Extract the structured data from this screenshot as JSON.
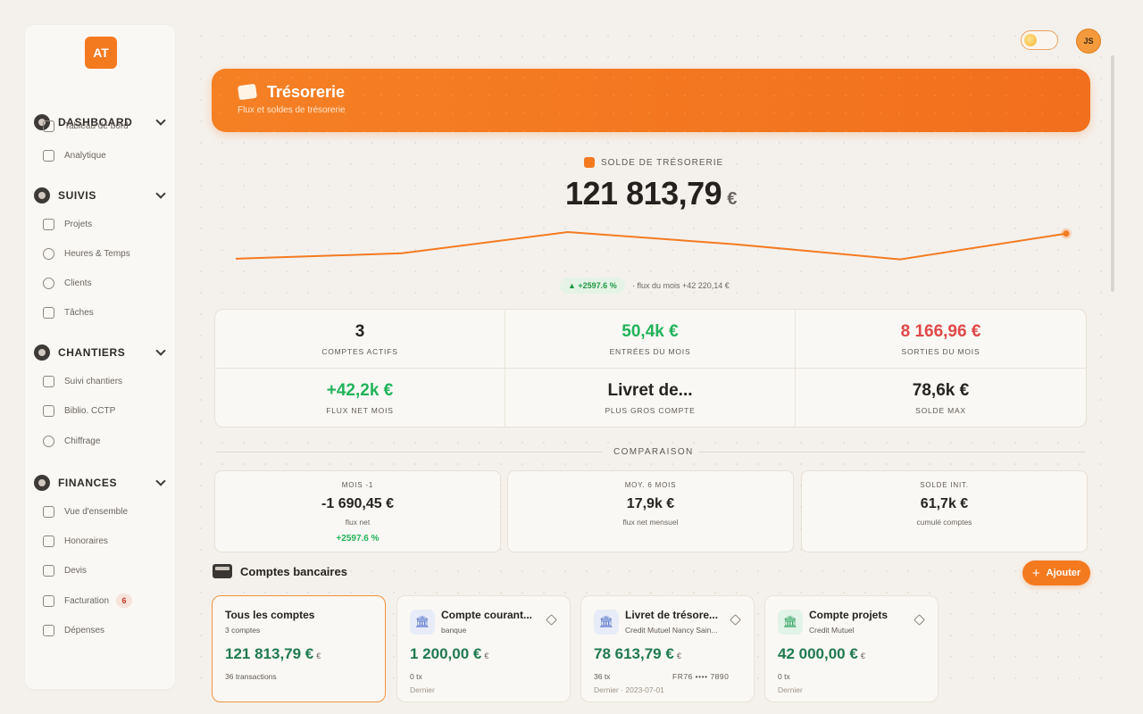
{
  "sidebar": {
    "logo": "AT",
    "sections": [
      {
        "title": "DASHBOARD",
        "items": [
          "Tableau de bord",
          "Analytique"
        ]
      },
      {
        "title": "SUIVIS",
        "items": [
          "Projets",
          "Heures & Temps",
          "Clients",
          "Tâches"
        ]
      },
      {
        "title": "CHANTIERS",
        "items": [
          "Suivi chantiers",
          "Biblio. CCTP",
          "Chiffrage"
        ]
      },
      {
        "title": "FINANCES",
        "items": [
          "Vue d'ensemble",
          "Honoraires",
          "Devis",
          "Facturation",
          "Dépenses"
        ]
      }
    ],
    "facturation_badge": "6",
    "collapse_glyph": "‹"
  },
  "topbar": {
    "avatar": "JS"
  },
  "hero": {
    "title": "Trésorerie",
    "subtitle": "Flux et soldes de trésorerie"
  },
  "balance": {
    "label": "SOLDE DE TRÉSORERIE",
    "value": "121 813,79",
    "currency": "€",
    "change": "▲ +2597.6 %",
    "note": "·  flux du mois +42 220,14 €"
  },
  "sparkline": {
    "values": [
      0.12,
      0.3,
      1.0,
      0.6,
      0.1,
      0.95
    ]
  },
  "stats": [
    {
      "value": "3",
      "label": "COMPTES ACTIFS",
      "tone": ""
    },
    {
      "value": "50,4k €",
      "label": "ENTRÉES DU MOIS",
      "tone": "green"
    },
    {
      "value": "8 166,96 €",
      "label": "SORTIES DU MOIS",
      "tone": "red"
    },
    {
      "value": "+42,2k €",
      "label": "FLUX NET MOIS",
      "tone": "green"
    },
    {
      "value": "Livret de...",
      "label": "PLUS GROS COMPTE",
      "tone": ""
    },
    {
      "value": "78,6k €",
      "label": "SOLDE MAX",
      "tone": ""
    }
  ],
  "comparison": {
    "title": "COMPARAISON",
    "cards": [
      {
        "label": "MOIS -1",
        "value": "-1 690,45 €",
        "sub": "flux net",
        "extra": "+2597.6 %"
      },
      {
        "label": "MOY. 6 MOIS",
        "value": "17,9k €",
        "sub": "flux net mensuel",
        "extra": ""
      },
      {
        "label": "SOLDE INIT.",
        "value": "61,7k €",
        "sub": "cumulé comptes",
        "extra": ""
      }
    ]
  },
  "accounts": {
    "title": "Comptes bancaires",
    "add_label": "Ajouter",
    "add_icon": "+",
    "cards": [
      {
        "name": "Tous les comptes",
        "sub": "3 comptes",
        "amount": "121 813,79 €",
        "cur": "€",
        "tx": "36 transactions",
        "iban": "",
        "icon": "",
        "faded": ""
      },
      {
        "name": "Compte courant...",
        "sub": "banque",
        "amount": "1 200,00 €",
        "cur": "€",
        "tx": "0 tx",
        "iban": "",
        "icon": "bank-blue",
        "faded": "Dernier"
      },
      {
        "name": "Livret de trésore...",
        "sub": "Credit Mutuel Nancy Sain...",
        "amount": "78 613,79 €",
        "cur": "€",
        "tx": "36 tx",
        "iban": "FR76 •••• 7890",
        "icon": "bank-blue",
        "faded": "Dernier · 2023-07-01"
      },
      {
        "name": "Compte projets",
        "sub": "Credit Mutuel",
        "amount": "42 000,00 €",
        "cur": "€",
        "tx": "0 tx",
        "iban": "",
        "icon": "bank-green",
        "faded": "Dernier"
      }
    ]
  },
  "colors": {
    "accent": "#f47a20",
    "green": "#22b35a",
    "red": "#e04848",
    "amount": "#1f7a4e"
  }
}
